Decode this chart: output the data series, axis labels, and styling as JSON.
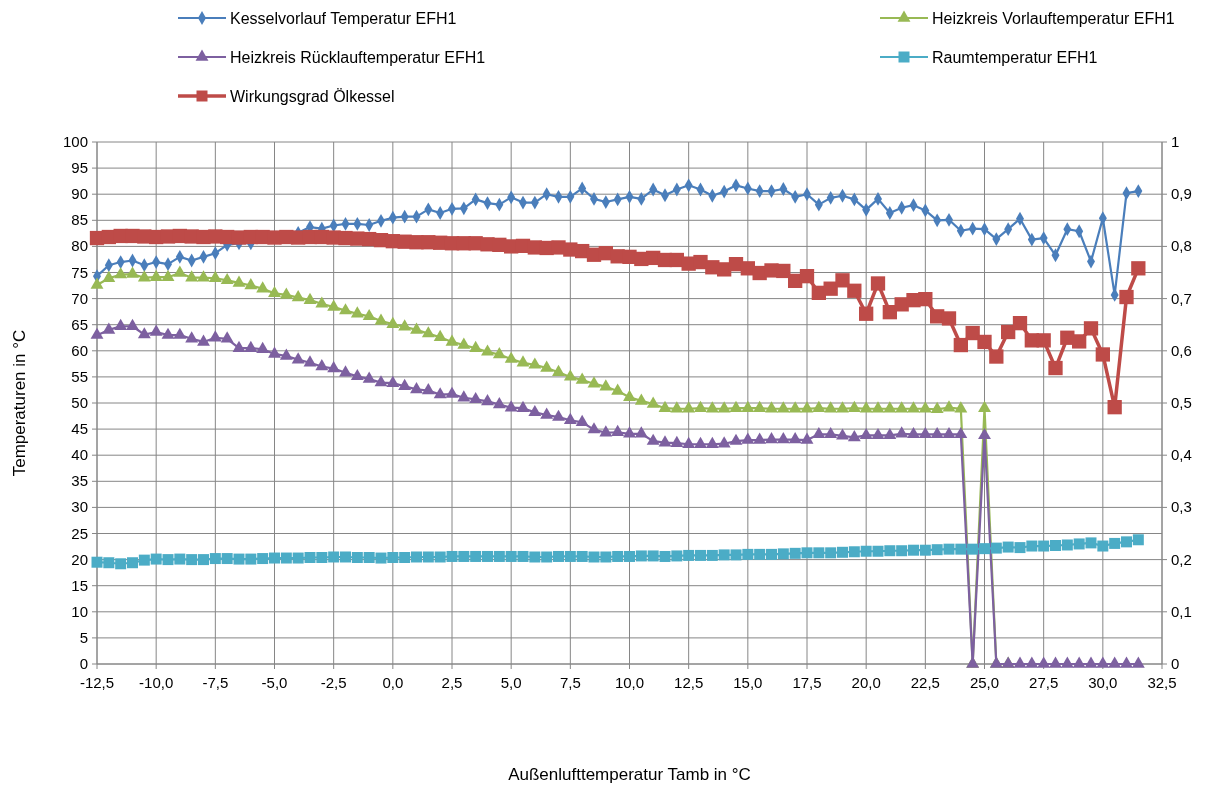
{
  "chart_data": {
    "type": "line",
    "xlabel": "Außenlufttemperatur Tamb in °C",
    "ylabel": "Temperaturen in °C",
    "x": [
      -12.5,
      -12,
      -11.5,
      -11,
      -10.5,
      -10,
      -9.5,
      -9,
      -8.5,
      -8,
      -7.5,
      -7,
      -6.5,
      -6,
      -5.5,
      -5,
      -4.5,
      -4,
      -3.5,
      -3,
      -2.5,
      -2,
      -1.5,
      -1,
      -0.5,
      0,
      0.5,
      1,
      1.5,
      2,
      2.5,
      3,
      3.5,
      4,
      4.5,
      5,
      5.5,
      6,
      6.5,
      7,
      7.5,
      8,
      8.5,
      9,
      9.5,
      10,
      10.5,
      11,
      11.5,
      12,
      12.5,
      13,
      13.5,
      14,
      14.5,
      15,
      15.5,
      16,
      16.5,
      17,
      17.5,
      18,
      18.5,
      19,
      19.5,
      20,
      20.5,
      21,
      21.5,
      22,
      22.5,
      23,
      23.5,
      24,
      24.5,
      25,
      25.5,
      26,
      26.5,
      27,
      27.5,
      28,
      28.5,
      29,
      29.5,
      30,
      30.5,
      31,
      31.5
    ],
    "series": [
      {
        "name": "Kesselvorlauf Temperatur EFH1",
        "color": "#4a7ebb",
        "marker": "diamond",
        "values": [
          74.3,
          76.4,
          77,
          77.3,
          76.4,
          77,
          76.6,
          78,
          77.3,
          78,
          78.7,
          80.3,
          80.6,
          80.6,
          null,
          null,
          null,
          82.6,
          83.7,
          83.4,
          84,
          84.3,
          84.3,
          84.1,
          84.9,
          85.5,
          85.7,
          85.7,
          87.1,
          86.4,
          87.2,
          87.3,
          89,
          88.3,
          88,
          89.4,
          88.4,
          88.4,
          90,
          89.5,
          89.5,
          91.1,
          89.1,
          88.5,
          89,
          89.5,
          89.1,
          90.9,
          89.8,
          90.9,
          91.7,
          90.9,
          89.7,
          90.5,
          91.7,
          91.1,
          90.6,
          90.6,
          91,
          89.5,
          90,
          88,
          89.3,
          89.7,
          89,
          87,
          89.1,
          86.4,
          87.4,
          87.9,
          86.9,
          85,
          85.1,
          83,
          83.4,
          83.3,
          81.4,
          83.3,
          85.3,
          81.3,
          81.6,
          78.3,
          83.3,
          82.9,
          77.1,
          85.4,
          70.7,
          90.2,
          90.6
        ]
      },
      {
        "name": "Heizkreis Vorlauftemperatur EFH1",
        "color": "#98b954",
        "marker": "triangle",
        "values": [
          72.6,
          73.9,
          74.6,
          74.7,
          74,
          74.1,
          74.1,
          74.9,
          74,
          74,
          73.9,
          73.5,
          73,
          72.5,
          71.9,
          71,
          70.7,
          70.2,
          69.7,
          69,
          68.4,
          67.7,
          67.1,
          66.6,
          65.7,
          65.1,
          64.6,
          64,
          63.3,
          62.6,
          61.7,
          61.1,
          60.5,
          59.8,
          59.3,
          58.4,
          57.7,
          57.3,
          56.7,
          55.9,
          55,
          54.4,
          53.7,
          53.1,
          52.3,
          51.1,
          50.4,
          49.8,
          49,
          48.9,
          48.9,
          49,
          48.9,
          48.9,
          49,
          49,
          49,
          48.9,
          48.9,
          48.9,
          48.9,
          49,
          48.9,
          48.9,
          49,
          48.9,
          48.9,
          48.9,
          48.9,
          48.9,
          48.9,
          48.8,
          49.1,
          48.9,
          0,
          49,
          0,
          0,
          null,
          null,
          null,
          null,
          null,
          null,
          null,
          null,
          null,
          null,
          null
        ]
      },
      {
        "name": "Heizkreis Rücklauftemperatur EFH1",
        "color": "#7d60a0",
        "marker": "triangle",
        "values": [
          63,
          64,
          64.7,
          64.7,
          63.1,
          63.6,
          63,
          63,
          62.3,
          61.7,
          62.5,
          62.3,
          60.5,
          60.5,
          60.3,
          59.4,
          59,
          58.3,
          57.7,
          57,
          56.6,
          55.8,
          55.1,
          54.6,
          53.9,
          53.8,
          53.2,
          52.6,
          52.4,
          51.6,
          51.7,
          51,
          50.7,
          50.3,
          49.7,
          49.1,
          49,
          48.2,
          47.7,
          47.3,
          46.7,
          46.3,
          44.9,
          44.3,
          44.4,
          44.1,
          44.1,
          42.7,
          42.4,
          42.3,
          42.1,
          42.1,
          42.1,
          42.2,
          42.7,
          42.9,
          42.9,
          43,
          43,
          43,
          42.9,
          44,
          44,
          43.7,
          43.4,
          43.8,
          43.8,
          43.8,
          44.1,
          44,
          44,
          44,
          44,
          44,
          0,
          43.8,
          0,
          0,
          0,
          0,
          0,
          0,
          0,
          0,
          0,
          0,
          0,
          0,
          0
        ]
      },
      {
        "name": "Raumtemperatur EFH1",
        "color": "#4bacc6",
        "marker": "square",
        "values": [
          19.5,
          19.4,
          19.2,
          19.4,
          19.9,
          20.1,
          20,
          20.1,
          20,
          20,
          20.2,
          20.2,
          20.1,
          20.1,
          20.2,
          20.3,
          20.3,
          20.3,
          20.4,
          20.4,
          20.5,
          20.5,
          20.4,
          20.4,
          20.3,
          20.4,
          20.4,
          20.5,
          20.5,
          20.5,
          20.6,
          20.6,
          20.6,
          20.6,
          20.6,
          20.6,
          20.6,
          20.5,
          20.5,
          20.6,
          20.6,
          20.6,
          20.5,
          20.5,
          20.6,
          20.6,
          20.7,
          20.7,
          20.6,
          20.7,
          20.8,
          20.8,
          20.8,
          20.9,
          20.9,
          21,
          21,
          21,
          21.1,
          21.2,
          21.3,
          21.3,
          21.3,
          21.4,
          21.5,
          21.6,
          21.6,
          21.7,
          21.7,
          21.8,
          21.8,
          21.9,
          22,
          22,
          22,
          22.1,
          22.2,
          22.4,
          22.3,
          22.6,
          22.6,
          22.7,
          22.8,
          23,
          23.2,
          22.6,
          23.1,
          23.4,
          23.8
        ]
      },
      {
        "name": "Wirkungsgrad Ölkessel",
        "color": "#be4b48",
        "marker": "square",
        "axis": "y2",
        "values": [
          0.816,
          0.818,
          0.82,
          0.82,
          0.819,
          0.818,
          0.819,
          0.82,
          0.819,
          0.818,
          0.819,
          0.818,
          0.817,
          0.818,
          0.818,
          0.817,
          0.818,
          0.817,
          0.818,
          0.818,
          0.817,
          0.816,
          0.815,
          0.814,
          0.812,
          0.81,
          0.809,
          0.808,
          0.808,
          0.807,
          0.806,
          0.806,
          0.806,
          0.804,
          0.803,
          0.8,
          0.801,
          0.798,
          0.797,
          0.798,
          0.794,
          0.791,
          0.784,
          0.787,
          0.781,
          0.78,
          0.776,
          0.778,
          0.774,
          0.774,
          0.767,
          0.77,
          0.76,
          0.756,
          0.766,
          0.758,
          0.749,
          0.754,
          0.753,
          0.734,
          0.743,
          0.711,
          0.719,
          0.735,
          0.715,
          0.671,
          0.729,
          0.674,
          0.689,
          0.697,
          0.699,
          0.666,
          0.662,
          0.611,
          0.634,
          0.617,
          0.589,
          0.636,
          0.653,
          0.62,
          0.62,
          0.567,
          0.625,
          0.618,
          0.643,
          0.593,
          0.492,
          0.703,
          0.758
        ]
      }
    ],
    "xlim": [
      -12.5,
      32.5
    ],
    "xticks": [
      {
        "value": -12.5,
        "label": "-12,5"
      },
      {
        "value": -10,
        "label": "-10,0"
      },
      {
        "value": -7.5,
        "label": "-7,5"
      },
      {
        "value": -5,
        "label": "-5,0"
      },
      {
        "value": -2.5,
        "label": "-2,5"
      },
      {
        "value": 0,
        "label": "0,0"
      },
      {
        "value": 2.5,
        "label": "2,5"
      },
      {
        "value": 5,
        "label": "5,0"
      },
      {
        "value": 7.5,
        "label": "7,5"
      },
      {
        "value": 10,
        "label": "10,0"
      },
      {
        "value": 12.5,
        "label": "12,5"
      },
      {
        "value": 15,
        "label": "15,0"
      },
      {
        "value": 17.5,
        "label": "17,5"
      },
      {
        "value": 20,
        "label": "20,0"
      },
      {
        "value": 22.5,
        "label": "22,5"
      },
      {
        "value": 25,
        "label": "25,0"
      },
      {
        "value": 27.5,
        "label": "27,5"
      },
      {
        "value": 30,
        "label": "30,0"
      },
      {
        "value": 32.5,
        "label": "32,5"
      }
    ],
    "ylim": [
      0,
      100
    ],
    "yticks": [
      0,
      5,
      10,
      15,
      20,
      25,
      30,
      35,
      40,
      45,
      50,
      55,
      60,
      65,
      70,
      75,
      80,
      85,
      90,
      95,
      100
    ],
    "y2lim": [
      0,
      1
    ],
    "y2ticks": [
      0,
      {
        "value": 0.1,
        "label": "0,1"
      },
      {
        "value": 0.2,
        "label": "0,2"
      },
      {
        "value": 0.3,
        "label": "0,3"
      },
      {
        "value": 0.4,
        "label": "0,4"
      },
      {
        "value": 0.5,
        "label": "0,5"
      },
      {
        "value": 0.6,
        "label": "0,6"
      },
      {
        "value": 0.7,
        "label": "0,7"
      },
      {
        "value": 0.8,
        "label": "0,8"
      },
      {
        "value": 0.9,
        "label": "0,9"
      },
      1
    ],
    "grid": true,
    "legend": "top",
    "line_style": "solid"
  }
}
